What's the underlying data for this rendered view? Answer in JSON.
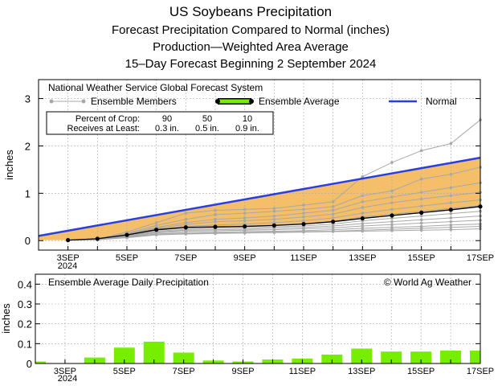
{
  "titles": [
    "US Soybeans Precipitation",
    "Forecast Precipitation Compared to Normal (inches)",
    "Production—Weighted Area Average",
    "15–Day Forecast Beginning 2 September 2024"
  ],
  "colors": {
    "normal": "#2b3fe0",
    "fill": "#f5bf6a",
    "ensemble_member": "#a8a8a8",
    "average": "#000000",
    "bar": "#77ee00"
  },
  "chart_data": [
    {
      "type": "line",
      "title": "National Weather Service Global Forecast System",
      "ylabel": "inches",
      "ylim": [
        -0.2,
        3.4
      ],
      "yticks": [
        0,
        1,
        2,
        3
      ],
      "xlim": [
        2,
        17
      ],
      "xticks": [
        3,
        5,
        7,
        9,
        11,
        13,
        15,
        17
      ],
      "xtick_labels": [
        "3SEP",
        "5SEP",
        "7SEP",
        "9SEP",
        "11SEP",
        "13SEP",
        "15SEP",
        "17SEP"
      ],
      "year_label": "2024",
      "legend": {
        "members": "Ensemble Members",
        "average": "Ensemble Average",
        "normal": "Normal"
      },
      "crop_table": {
        "row1_label": "Percent of Crop:",
        "row2_label": "Receives at Least:",
        "percents": [
          "90",
          "50",
          "10"
        ],
        "amounts": [
          "0.3 in.",
          "0.5 in.",
          "0.9 in."
        ]
      },
      "normal": {
        "x": [
          2,
          17
        ],
        "y": [
          0.1,
          1.75
        ]
      },
      "average": {
        "x": [
          3,
          4,
          5,
          6,
          7,
          8,
          9,
          10,
          11,
          12,
          13,
          14,
          15,
          16,
          17
        ],
        "y": [
          0.01,
          0.04,
          0.12,
          0.23,
          0.28,
          0.29,
          0.3,
          0.32,
          0.35,
          0.4,
          0.47,
          0.53,
          0.59,
          0.65,
          0.72
        ]
      },
      "members": {
        "x": [
          3,
          4,
          5,
          6,
          7,
          8,
          9,
          10,
          11,
          12,
          13,
          14,
          15,
          16,
          17
        ],
        "series": [
          [
            0.01,
            0.04,
            0.18,
            0.38,
            0.58,
            0.64,
            0.66,
            0.68,
            0.75,
            0.82,
            1.35,
            1.65,
            1.9,
            2.05,
            2.55
          ],
          [
            0.01,
            0.04,
            0.15,
            0.32,
            0.45,
            0.55,
            0.58,
            0.62,
            0.66,
            0.72,
            0.95,
            1.05,
            1.3,
            1.4,
            1.55
          ],
          [
            0.01,
            0.04,
            0.14,
            0.28,
            0.38,
            0.45,
            0.48,
            0.52,
            0.58,
            0.64,
            0.82,
            0.92,
            1.02,
            1.12,
            1.22
          ],
          [
            0.01,
            0.04,
            0.13,
            0.26,
            0.34,
            0.4,
            0.42,
            0.45,
            0.5,
            0.56,
            0.7,
            0.8,
            0.88,
            0.95,
            1.02
          ],
          [
            0.01,
            0.03,
            0.12,
            0.24,
            0.3,
            0.33,
            0.35,
            0.38,
            0.42,
            0.48,
            0.58,
            0.66,
            0.73,
            0.8,
            0.86
          ],
          [
            0.01,
            0.03,
            0.11,
            0.22,
            0.27,
            0.28,
            0.3,
            0.33,
            0.36,
            0.41,
            0.5,
            0.56,
            0.62,
            0.68,
            0.74
          ],
          [
            0.01,
            0.03,
            0.1,
            0.2,
            0.24,
            0.26,
            0.27,
            0.29,
            0.31,
            0.35,
            0.42,
            0.47,
            0.52,
            0.57,
            0.62
          ],
          [
            0.01,
            0.03,
            0.1,
            0.18,
            0.22,
            0.23,
            0.24,
            0.26,
            0.28,
            0.31,
            0.36,
            0.4,
            0.44,
            0.48,
            0.52
          ],
          [
            0.01,
            0.02,
            0.09,
            0.16,
            0.2,
            0.21,
            0.22,
            0.23,
            0.25,
            0.27,
            0.31,
            0.34,
            0.37,
            0.4,
            0.43
          ],
          [
            0.01,
            0.02,
            0.08,
            0.14,
            0.17,
            0.18,
            0.19,
            0.2,
            0.21,
            0.23,
            0.26,
            0.28,
            0.3,
            0.33,
            0.35
          ],
          [
            0.01,
            0.02,
            0.07,
            0.13,
            0.15,
            0.16,
            0.17,
            0.18,
            0.19,
            0.2,
            0.22,
            0.24,
            0.26,
            0.28,
            0.3
          ],
          [
            0.01,
            0.02,
            0.06,
            0.12,
            0.14,
            0.15,
            0.16,
            0.17,
            0.18,
            0.19,
            0.2,
            0.21,
            0.22,
            0.23,
            0.25
          ]
        ]
      }
    },
    {
      "type": "bar",
      "title": "Ensemble Average Daily Precipitation",
      "credit": "© World Ag Weather",
      "ylabel": "inches",
      "ylim": [
        0,
        0.45
      ],
      "yticks": [
        0,
        0.1,
        0.2,
        0.3,
        0.4
      ],
      "ytick_labels": [
        "0",
        "0.1",
        "0.2",
        "0.3",
        "0.4"
      ],
      "xlim": [
        2,
        17
      ],
      "xticks": [
        3,
        5,
        7,
        9,
        11,
        13,
        15,
        17
      ],
      "xtick_labels": [
        "3SEP",
        "5SEP",
        "7SEP",
        "9SEP",
        "11SEP",
        "13SEP",
        "15SEP",
        "17SEP"
      ],
      "year_label": "2024",
      "x": [
        2,
        3,
        4,
        5,
        6,
        7,
        8,
        9,
        10,
        11,
        12,
        13,
        14,
        15,
        16,
        17
      ],
      "values": [
        0.01,
        0.0,
        0.03,
        0.08,
        0.11,
        0.055,
        0.015,
        0.01,
        0.02,
        0.025,
        0.045,
        0.075,
        0.06,
        0.06,
        0.065,
        0.065
      ]
    }
  ]
}
